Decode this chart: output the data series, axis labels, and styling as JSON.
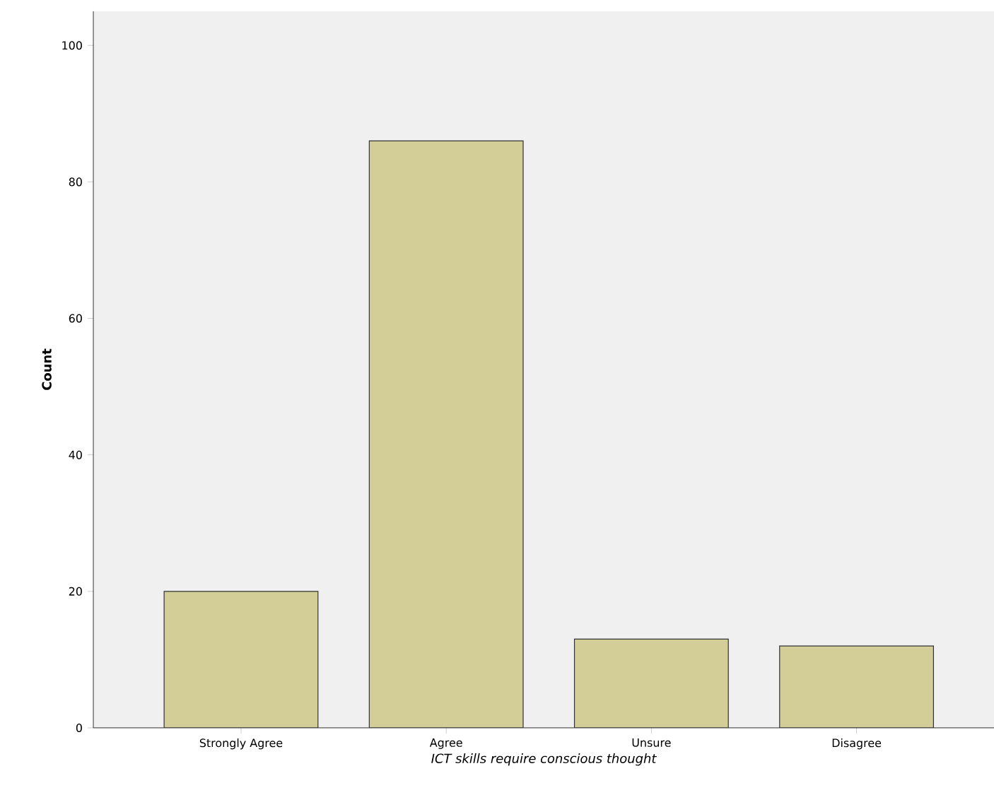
{
  "chart_data": {
    "type": "bar",
    "categories": [
      "Strongly Agree",
      "Agree",
      "Unsure",
      "Disagree"
    ],
    "values": [
      20,
      86,
      13,
      12
    ],
    "color": "#d3ce97",
    "ylim": [
      0,
      105
    ],
    "yticks": [
      0,
      20,
      40,
      60,
      80,
      100
    ],
    "xlabel": "ICT skills require conscious thought",
    "ylabel": "Count"
  }
}
